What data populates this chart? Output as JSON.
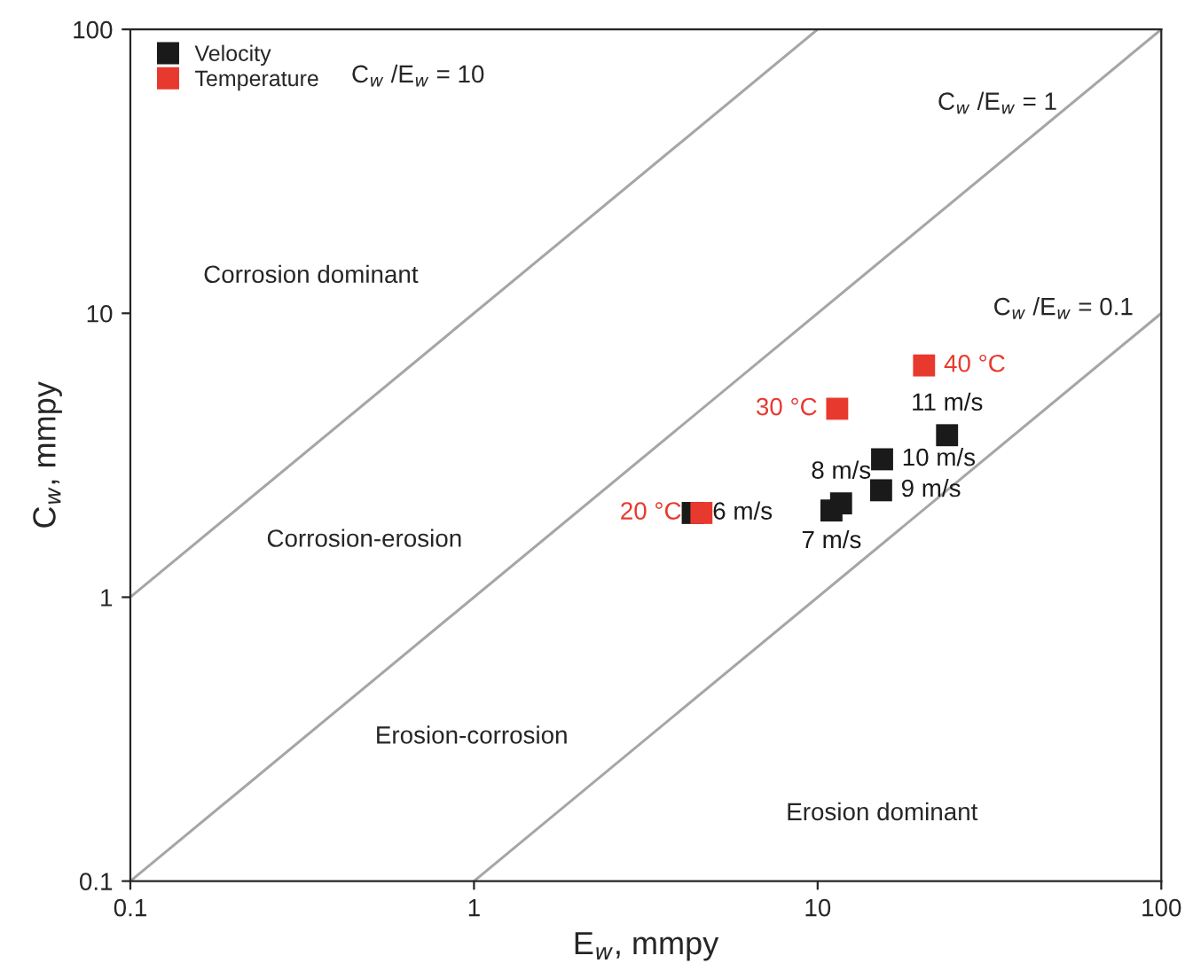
{
  "chart_data": {
    "type": "scatter",
    "xlabel": "E$_{w}$, mmpy",
    "ylabel": "C$_{w}$, mmpy",
    "log": "xy",
    "xlim": [
      0.1,
      100
    ],
    "ylim": [
      0.1,
      100
    ],
    "xticks": [
      0.1,
      1,
      10,
      100
    ],
    "yticks": [
      0.1,
      1,
      10,
      100
    ],
    "grid": false,
    "legend": "top left",
    "series": [
      {
        "name": "Velocity",
        "color": "#1a1a1a",
        "marker": "square",
        "x": [
          4.33,
          10.97,
          11.7,
          15.3,
          15.4,
          23.8
        ],
        "values": [
          1.98,
          2.02,
          2.14,
          2.38,
          3.06,
          3.72
        ]
      },
      {
        "name": "Temperature",
        "color": "#e8392e",
        "marker": "square",
        "x": [
          4.59,
          11.4,
          20.4
        ],
        "values": [
          1.98,
          4.61,
          6.55
        ]
      },
      {
        "type": "line",
        "color": "#a6a6a6",
        "x": [
          0.1,
          10
        ],
        "values": [
          1,
          100
        ]
      },
      {
        "type": "line",
        "color": "#a6a6a6",
        "x": [
          0.1,
          100
        ],
        "values": [
          0.1,
          100
        ]
      },
      {
        "type": "line",
        "color": "#a6a6a6",
        "x": [
          1,
          100
        ],
        "values": [
          0.1,
          10
        ]
      }
    ],
    "annotations": [
      "C$_{w}$ /E$_{w}$ = 10",
      "C$_{w}$ /E$_{w}$ = 1",
      "C$_{w}$ /E$_{w}$ = 0.1",
      "Corrosion dominant",
      "Corrosion-erosion",
      "Erosion-corrosion",
      "Erosion dominant",
      {
        "text": "6 m/s",
        "x": 4.33,
        "y": 1.98
      },
      {
        "text": "7 m/s",
        "x": 10.97,
        "y": 2.02
      },
      {
        "text": "8 m/s",
        "x": 11.7,
        "y": 2.14
      },
      {
        "text": "9 m/s",
        "x": 15.3,
        "y": 2.38
      },
      {
        "text": "10 m/s",
        "x": 15.4,
        "y": 3.06
      },
      {
        "text": "11 m/s",
        "x": 23.8,
        "y": 3.72
      },
      {
        "text": "20 °C",
        "x": 4.59,
        "y": 1.98
      },
      {
        "text": "30 °C",
        "x": 11.4,
        "y": 4.61
      },
      {
        "text": "40 °C",
        "x": 20.4,
        "y": 6.55
      }
    ]
  }
}
